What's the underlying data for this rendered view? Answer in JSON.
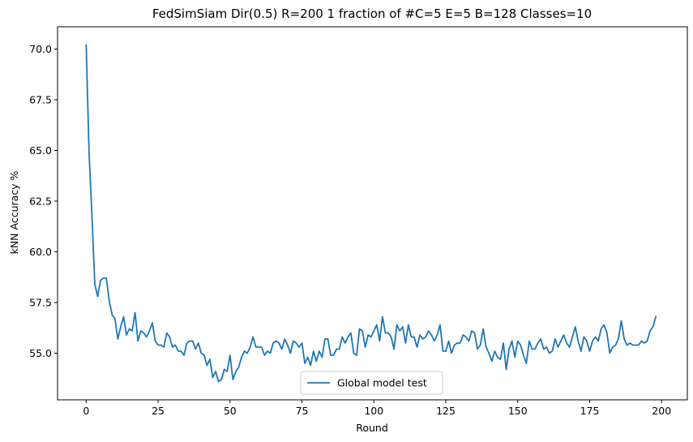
{
  "chart_data": {
    "type": "line",
    "title": "FedSimSiam Dir(0.5) R=200 1 fraction of #C=5 E=5 B=128  Classes=10",
    "xlabel": "Round",
    "ylabel": "kNN Accuracy %",
    "xlim": [
      -9.95,
      208.95
    ],
    "ylim": [
      52.7,
      71.1
    ],
    "xticks": [
      0,
      25,
      50,
      75,
      100,
      125,
      150,
      175,
      200
    ],
    "xtick_labels": [
      "0",
      "25",
      "50",
      "75",
      "100",
      "125",
      "150",
      "175",
      "200"
    ],
    "yticks": [
      55.0,
      57.5,
      60.0,
      62.5,
      65.0,
      67.5,
      70.0
    ],
    "ytick_labels": [
      "55.0",
      "57.5",
      "60.0",
      "62.5",
      "65.0",
      "67.5",
      "70.0"
    ],
    "grid": false,
    "legend_position": "lower-center",
    "line_color": "#1f77b4",
    "series": [
      {
        "name": "Global model test",
        "x_start": 0,
        "x_step": 1,
        "values": [
          70.2,
          64.9,
          61.8,
          58.4,
          57.8,
          58.6,
          58.7,
          58.7,
          57.6,
          56.9,
          56.7,
          55.7,
          56.3,
          56.8,
          55.9,
          56.2,
          56.1,
          57.0,
          55.6,
          56.1,
          56.0,
          55.8,
          56.1,
          56.5,
          55.6,
          55.4,
          55.4,
          55.3,
          56.0,
          55.8,
          55.3,
          55.4,
          55.1,
          55.1,
          54.9,
          55.5,
          55.6,
          55.6,
          55.2,
          55.5,
          55.0,
          54.9,
          54.4,
          54.7,
          53.8,
          54.1,
          53.6,
          53.7,
          54.2,
          54.1,
          54.9,
          53.7,
          54.1,
          54.3,
          54.8,
          55.1,
          55.0,
          55.3,
          55.8,
          55.3,
          55.3,
          55.3,
          54.9,
          55.1,
          55.0,
          55.5,
          55.6,
          55.5,
          55.2,
          55.7,
          55.4,
          55.0,
          55.6,
          55.5,
          55.3,
          55.5,
          54.5,
          54.8,
          54.4,
          55.1,
          54.6,
          55.1,
          54.8,
          55.7,
          55.7,
          54.9,
          54.9,
          55.2,
          55.2,
          55.8,
          55.5,
          55.8,
          56.0,
          55.0,
          54.9,
          56.2,
          56.1,
          55.3,
          55.9,
          55.8,
          56.1,
          56.4,
          55.6,
          56.8,
          56.0,
          56.0,
          55.8,
          55.2,
          56.4,
          56.1,
          56.3,
          55.5,
          56.4,
          55.8,
          55.8,
          55.3,
          55.9,
          55.7,
          55.8,
          56.1,
          55.9,
          55.6,
          55.9,
          56.4,
          55.1,
          55.1,
          55.6,
          55.0,
          55.4,
          55.5,
          55.5,
          55.9,
          55.8,
          55.6,
          56.1,
          56.0,
          55.2,
          55.4,
          56.2,
          55.3,
          55.0,
          54.6,
          55.1,
          54.8,
          54.7,
          55.5,
          54.2,
          55.2,
          55.6,
          54.8,
          55.6,
          55.4,
          54.9,
          54.5,
          55.6,
          55.2,
          55.2,
          55.5,
          55.7,
          55.2,
          55.3,
          55.0,
          55.1,
          55.7,
          55.3,
          55.6,
          55.9,
          55.5,
          55.3,
          55.8,
          56.3,
          55.6,
          55.1,
          55.8,
          55.6,
          55.1,
          55.6,
          55.8,
          55.6,
          56.2,
          56.4,
          56.0,
          55.0,
          55.3,
          55.4,
          55.7,
          56.6,
          55.7,
          55.4,
          55.5,
          55.4,
          55.4,
          55.4,
          55.6,
          55.5,
          55.6,
          56.1,
          56.3,
          56.8
        ]
      }
    ]
  }
}
